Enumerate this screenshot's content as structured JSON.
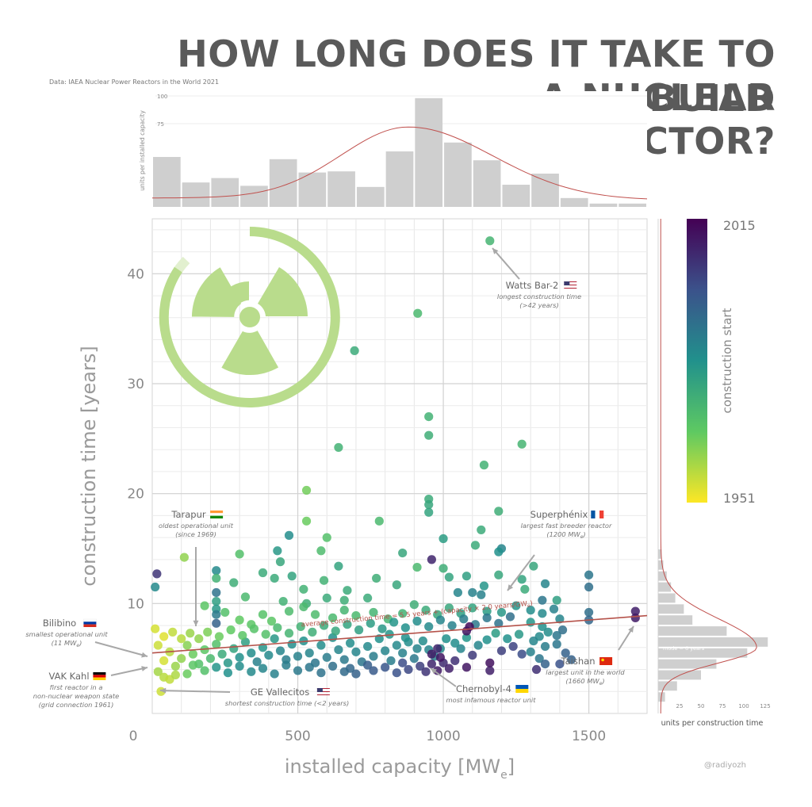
{
  "title_lines": [
    "HOW LONG DOES IT TAKE TO BUILD",
    "A NUCLEAR",
    "REACTOR?"
  ],
  "source": "Data: IAEA Nuclear Power Reactors in the World 2021",
  "credit": "@radiyozh",
  "colors": {
    "title": "#5a5a5a",
    "icon": "#b7d98a",
    "trend": "#b5524a",
    "hist": "#cfcfcf"
  },
  "chart_data": {
    "type": "scatter",
    "xlabel": "installed capacity [MW",
    "xlabel_sub": "e",
    "xlabel_end": "]",
    "ylabel": "construction time [years]",
    "xlim": [
      0,
      1700
    ],
    "ylim": [
      0,
      45
    ],
    "xticks": [
      0,
      500,
      1000,
      1500
    ],
    "yticks": [
      10,
      20,
      30,
      40
    ],
    "colorbar": {
      "label": "construction start",
      "min": 1951,
      "max": 2015,
      "min_label": "1951",
      "max_label": "2015"
    },
    "trend": {
      "label": "average construction time = 5.5 years + (capacity × 2.0 years/GW",
      "label_sub": "e",
      "label_end": ")",
      "intercept": 5.5,
      "slope_per_mw": 0.002
    },
    "top_histogram": {
      "ylabel": "units per installed capacity",
      "yticks": [
        75,
        100
      ],
      "bin_width": 100,
      "bins": [
        0,
        100,
        200,
        300,
        400,
        500,
        600,
        700,
        800,
        900,
        1000,
        1100,
        1200,
        1300,
        1400,
        1500,
        1600
      ],
      "counts": [
        45,
        22,
        26,
        19,
        43,
        31,
        32,
        18,
        50,
        98,
        58,
        42,
        20,
        30,
        8,
        3,
        3
      ]
    },
    "side_histogram": {
      "xlabel": "units per construction time",
      "xticks": [
        25,
        50,
        75,
        100,
        125
      ],
      "mode_label": "mode = 6 years",
      "bins": [
        1,
        2,
        3,
        4,
        5,
        6,
        7,
        8,
        9,
        10,
        11,
        12,
        13,
        14
      ],
      "counts": [
        8,
        22,
        50,
        68,
        104,
        128,
        80,
        40,
        30,
        20,
        15,
        10,
        6,
        4
      ]
    },
    "annotations": [
      {
        "name": "Watts Bar-2",
        "flag": "us",
        "desc": [
          "longest construction time",
          "(>42 years)"
        ],
        "x": 1160,
        "y": 43
      },
      {
        "name": "Tarapur",
        "flag": "in",
        "desc": [
          "oldest operational unit",
          "(since 1969)"
        ],
        "x": 160,
        "y": 7.5
      },
      {
        "name": "Superphénix",
        "flag": "fr",
        "desc": [
          "largest fast breeder reactor",
          "(1200 MW",
          "e",
          ")"
        ],
        "x": 1200,
        "y": 10.5
      },
      {
        "name": "Bilibino",
        "flag": "ru",
        "desc": [
          "smallest operational unit",
          "(11 MW",
          "e",
          ")"
        ],
        "x": 11,
        "y": 5
      },
      {
        "name": "VAK Kahl",
        "flag": "de",
        "desc": [
          "first reactor in a",
          "non-nuclear weapon state",
          "(grid connection 1961)"
        ],
        "x": 16,
        "y": 4
      },
      {
        "name": "GE Vallecitos",
        "flag": "us",
        "desc": [
          "shortest construction time (<2 years)"
        ],
        "x": 30,
        "y": 2
      },
      {
        "name": "Chernobyl-4",
        "flag": "ua",
        "desc": [
          "most infamous reactor unit"
        ],
        "x": 950,
        "y": 4
      },
      {
        "name": "Taishan",
        "flag": "cn",
        "desc": [
          "largest unit in the world",
          "(1660 MW",
          "e",
          ")"
        ],
        "x": 1660,
        "y": 8.5
      }
    ],
    "points": [
      [
        1160,
        43,
        1973
      ],
      [
        912,
        36.4,
        1972
      ],
      [
        695,
        33,
        1976
      ],
      [
        950,
        27,
        1974
      ],
      [
        950,
        25.3,
        1975
      ],
      [
        1270,
        24.5,
        1973
      ],
      [
        640,
        24.2,
        1974
      ],
      [
        1140,
        22.6,
        1974
      ],
      [
        950,
        19.5,
        1976
      ],
      [
        950,
        19,
        1977
      ],
      [
        950,
        18.3,
        1978
      ],
      [
        1190,
        18.4,
        1975
      ],
      [
        530,
        20.3,
        1965
      ],
      [
        530,
        17.5,
        1966
      ],
      [
        780,
        17.5,
        1972
      ],
      [
        1130,
        16.7,
        1976
      ],
      [
        1000,
        15.9,
        1980
      ],
      [
        600,
        16,
        1970
      ],
      [
        470,
        16.2,
        1984
      ],
      [
        1110,
        15.3,
        1976
      ],
      [
        1200,
        15,
        1986
      ],
      [
        1190,
        14.7,
        1983
      ],
      [
        580,
        14.8,
        1971
      ],
      [
        430,
        14.8,
        1981
      ],
      [
        300,
        14.5,
        1970
      ],
      [
        110,
        14.2,
        1962
      ],
      [
        16,
        12.7,
        2005
      ],
      [
        1000,
        13.2,
        1975
      ],
      [
        960,
        14,
        2008
      ],
      [
        1310,
        13.4,
        1977
      ],
      [
        220,
        13,
        1985
      ],
      [
        640,
        13.4,
        1978
      ],
      [
        910,
        13.3,
        1972
      ],
      [
        480,
        12.5,
        1978
      ],
      [
        1190,
        12.6,
        1977
      ],
      [
        1500,
        12.6,
        1990
      ],
      [
        420,
        12.3,
        1976
      ],
      [
        220,
        12.3,
        1974
      ],
      [
        220,
        11,
        1991
      ],
      [
        280,
        11.9,
        1975
      ],
      [
        590,
        12.1,
        1974
      ],
      [
        770,
        12.3,
        1975
      ],
      [
        840,
        11.7,
        1977
      ],
      [
        1080,
        12.5,
        1979
      ],
      [
        1270,
        12.2,
        1978
      ],
      [
        1050,
        11,
        1986
      ],
      [
        1350,
        11.8,
        1986
      ],
      [
        10,
        11.5,
        1985
      ],
      [
        520,
        11.3,
        1974
      ],
      [
        600,
        10.5,
        1976
      ],
      [
        660,
        10.3,
        1975
      ],
      [
        1500,
        11.5,
        1992
      ],
      [
        1390,
        10.3,
        1979
      ],
      [
        1340,
        10.3,
        1990
      ],
      [
        1280,
        11.3,
        1976
      ],
      [
        1100,
        11,
        1987
      ],
      [
        1130,
        10.8,
        1987
      ],
      [
        740,
        10.5,
        1976
      ],
      [
        530,
        10,
        1975
      ],
      [
        450,
        10.2,
        1974
      ],
      [
        320,
        10.6,
        1972
      ],
      [
        220,
        10.2,
        1979
      ],
      [
        220,
        9.5,
        1981
      ],
      [
        220,
        9,
        1989
      ],
      [
        220,
        8.2,
        1995
      ],
      [
        180,
        9.8,
        1968
      ],
      [
        250,
        9.2,
        1970
      ],
      [
        300,
        8.5,
        1967
      ],
      [
        340,
        8.1,
        1968
      ],
      [
        380,
        9,
        1969
      ],
      [
        410,
        8.4,
        1968
      ],
      [
        470,
        9.3,
        1971
      ],
      [
        520,
        9.7,
        1972
      ],
      [
        560,
        9,
        1971
      ],
      [
        620,
        8.7,
        1972
      ],
      [
        660,
        9.4,
        1973
      ],
      [
        700,
        8.9,
        1972
      ],
      [
        760,
        9.2,
        1973
      ],
      [
        810,
        8.6,
        1973
      ],
      [
        860,
        9.1,
        1974
      ],
      [
        900,
        9.9,
        1975
      ],
      [
        940,
        9.4,
        1976
      ],
      [
        980,
        9,
        1977
      ],
      [
        1020,
        9.6,
        1977
      ],
      [
        1060,
        9.1,
        1979
      ],
      [
        1100,
        9.6,
        1978
      ],
      [
        1150,
        9.3,
        1980
      ],
      [
        1200,
        9.2,
        1981
      ],
      [
        1250,
        9.8,
        1982
      ],
      [
        1300,
        9.4,
        1984
      ],
      [
        1340,
        9.1,
        1985
      ],
      [
        1380,
        9.5,
        1987
      ],
      [
        1400,
        8.6,
        1986
      ],
      [
        1410,
        7.6,
        1992
      ],
      [
        1500,
        9.2,
        1992
      ],
      [
        1500,
        8.5,
        1994
      ],
      [
        1660,
        9.3,
        2009
      ],
      [
        1660,
        8.7,
        2010
      ],
      [
        1300,
        8.3,
        1982
      ],
      [
        1340,
        7.9,
        1983
      ],
      [
        1360,
        7.4,
        1984
      ],
      [
        1330,
        7,
        1985
      ],
      [
        1310,
        6.6,
        1986
      ],
      [
        1350,
        6.1,
        1988
      ],
      [
        1300,
        5.6,
        1987
      ],
      [
        1330,
        5,
        1990
      ],
      [
        1350,
        4.5,
        1995
      ],
      [
        1320,
        4,
        2006
      ],
      [
        1390,
        7.1,
        1990
      ],
      [
        1260,
        7.2,
        1981
      ],
      [
        1220,
        6.8,
        1983
      ],
      [
        1180,
        7.3,
        1980
      ],
      [
        1150,
        6.7,
        1983
      ],
      [
        1120,
        6.2,
        1986
      ],
      [
        1080,
        6.9,
        1982
      ],
      [
        1060,
        5.9,
        1986
      ],
      [
        1040,
        6.4,
        1984
      ],
      [
        1010,
        6.8,
        1983
      ],
      [
        990,
        5.9,
        1985
      ],
      [
        970,
        5.2,
        1987
      ],
      [
        950,
        5.8,
        1986
      ],
      [
        930,
        6.6,
        1984
      ],
      [
        910,
        5.9,
        1986
      ],
      [
        900,
        5,
        1989
      ],
      [
        880,
        6.5,
        1984
      ],
      [
        860,
        5.5,
        1987
      ],
      [
        840,
        6.2,
        1985
      ],
      [
        820,
        4.8,
        1988
      ],
      [
        800,
        5.7,
        1986
      ],
      [
        780,
        6.8,
        1983
      ],
      [
        760,
        5.2,
        1988
      ],
      [
        740,
        6.1,
        1985
      ],
      [
        720,
        4.7,
        1990
      ],
      [
        700,
        5.6,
        1986
      ],
      [
        680,
        6.4,
        1984
      ],
      [
        660,
        4.9,
        1989
      ],
      [
        640,
        5.8,
        1986
      ],
      [
        620,
        6.9,
        1983
      ],
      [
        600,
        5.1,
        1988
      ],
      [
        580,
        6.2,
        1984
      ],
      [
        560,
        4.6,
        1990
      ],
      [
        540,
        5.5,
        1986
      ],
      [
        520,
        6.6,
        1983
      ],
      [
        500,
        5.2,
        1987
      ],
      [
        480,
        6.3,
        1984
      ],
      [
        460,
        4.9,
        1988
      ],
      [
        440,
        5.7,
        1986
      ],
      [
        420,
        6.8,
        1981
      ],
      [
        400,
        5.3,
        1985
      ],
      [
        380,
        6,
        1982
      ],
      [
        360,
        4.7,
        1987
      ],
      [
        340,
        5.5,
        1984
      ],
      [
        320,
        6.5,
        1979
      ],
      [
        300,
        5.1,
        1983
      ],
      [
        280,
        5.9,
        1978
      ],
      [
        260,
        4.6,
        1981
      ],
      [
        240,
        5.4,
        1976
      ],
      [
        220,
        6.3,
        1970
      ],
      [
        200,
        5,
        1972
      ],
      [
        180,
        5.8,
        1968
      ],
      [
        160,
        4.5,
        1970
      ],
      [
        140,
        5.4,
        1966
      ],
      [
        120,
        6.2,
        1963
      ],
      [
        100,
        5,
        1962
      ],
      [
        80,
        4.3,
        1961
      ],
      [
        60,
        5.6,
        1958
      ],
      [
        40,
        4.8,
        1955
      ],
      [
        20,
        6.2,
        1956
      ],
      [
        20,
        3.8,
        1960
      ],
      [
        30,
        2,
        1956
      ],
      [
        40,
        3.3,
        1958
      ],
      [
        60,
        3.1,
        1957
      ],
      [
        80,
        3.5,
        1959
      ],
      [
        10,
        7.7,
        1955
      ],
      [
        40,
        7,
        1954
      ],
      [
        70,
        7.4,
        1957
      ],
      [
        100,
        6.8,
        1958
      ],
      [
        130,
        7.3,
        1961
      ],
      [
        160,
        6.8,
        1962
      ],
      [
        190,
        7.4,
        1964
      ],
      [
        230,
        7,
        1966
      ],
      [
        270,
        7.6,
        1967
      ],
      [
        310,
        7.1,
        1968
      ],
      [
        350,
        7.7,
        1969
      ],
      [
        390,
        7.2,
        1970
      ],
      [
        430,
        7.8,
        1972
      ],
      [
        470,
        7.3,
        1973
      ],
      [
        510,
        7.9,
        1974
      ],
      [
        550,
        7.4,
        1975
      ],
      [
        590,
        8,
        1976
      ],
      [
        630,
        7.5,
        1977
      ],
      [
        670,
        8.1,
        1978
      ],
      [
        710,
        7.6,
        1979
      ],
      [
        750,
        8.2,
        1980
      ],
      [
        790,
        7.7,
        1981
      ],
      [
        830,
        8.3,
        1982
      ],
      [
        870,
        7.8,
        1983
      ],
      [
        910,
        8.4,
        1984
      ],
      [
        950,
        7.9,
        1985
      ],
      [
        990,
        8.5,
        1986
      ],
      [
        1030,
        8,
        1987
      ],
      [
        1070,
        8.6,
        1988
      ],
      [
        1110,
        8.1,
        1989
      ],
      [
        1150,
        8.7,
        1990
      ],
      [
        1190,
        8.2,
        1991
      ],
      [
        1230,
        8.8,
        1992
      ],
      [
        920,
        4.3,
        2003
      ],
      [
        940,
        3.8,
        2005
      ],
      [
        960,
        4.5,
        2008
      ],
      [
        980,
        3.9,
        2010
      ],
      [
        1000,
        4.6,
        2007
      ],
      [
        1020,
        4.1,
        2009
      ],
      [
        1040,
        4.8,
        2006
      ],
      [
        1080,
        4.2,
        2011
      ],
      [
        1160,
        3.9,
        2009
      ],
      [
        1090,
        7.9,
        2013
      ],
      [
        1080,
        7.5,
        2012
      ],
      [
        960,
        5.4,
        2010
      ],
      [
        980,
        5.9,
        2008
      ],
      [
        990,
        5.1,
        2011
      ],
      [
        880,
        4,
        2001
      ],
      [
        860,
        4.6,
        2000
      ],
      [
        840,
        3.7,
        1999
      ],
      [
        800,
        4.2,
        1998
      ],
      [
        760,
        3.9,
        1997
      ],
      [
        740,
        4.4,
        1996
      ],
      [
        700,
        3.6,
        1995
      ],
      [
        680,
        4.1,
        1994
      ],
      [
        660,
        3.8,
        1993
      ],
      [
        620,
        4.3,
        1992
      ],
      [
        580,
        3.7,
        1991
      ],
      [
        540,
        4.2,
        1990
      ],
      [
        500,
        3.9,
        1989
      ],
      [
        460,
        4.4,
        1988
      ],
      [
        420,
        3.6,
        1987
      ],
      [
        380,
        4.1,
        1986
      ],
      [
        340,
        3.8,
        1985
      ],
      [
        300,
        4.3,
        1984
      ],
      [
        260,
        3.7,
        1983
      ],
      [
        220,
        4.2,
        1982
      ],
      [
        180,
        3.9,
        1970
      ],
      [
        140,
        4.4,
        1968
      ],
      [
        120,
        3.6,
        1966
      ],
      [
        1160,
        4.6,
        2012
      ],
      [
        1100,
        5.3,
        2004
      ],
      [
        1200,
        5.7,
        2003
      ],
      [
        1240,
        6.1,
        2002
      ],
      [
        1270,
        5.4,
        2000
      ],
      [
        870,
        6.9,
        1983
      ],
      [
        815,
        7.2,
        1982
      ],
      [
        1400,
        4.5,
        1999
      ],
      [
        1440,
        4.9,
        1995
      ],
      [
        1390,
        6.3,
        1990
      ],
      [
        1420,
        5.5,
        1995
      ],
      [
        440,
        13.8,
        1977
      ],
      [
        380,
        12.8,
        1976
      ],
      [
        860,
        14.6,
        1977
      ],
      [
        1020,
        12.4,
        1978
      ],
      [
        1140,
        11.6,
        1982
      ],
      [
        670,
        11.2,
        1976
      ]
    ]
  }
}
